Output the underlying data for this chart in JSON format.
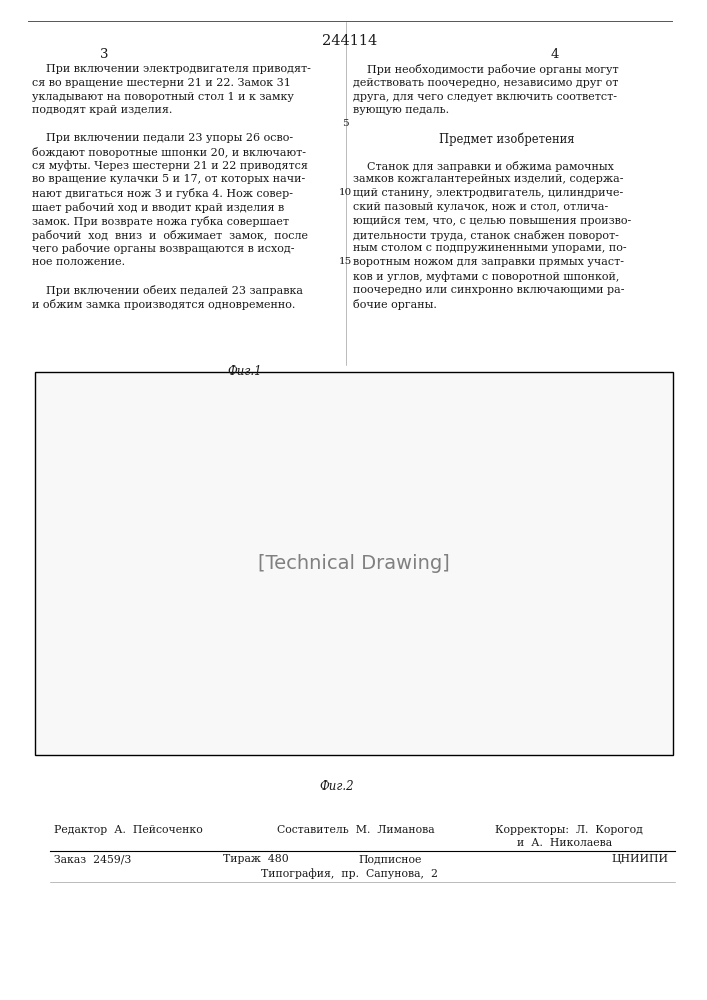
{
  "patent_number": "244114",
  "page_left": "3",
  "page_right": "4",
  "bg_color": "#f5f5f0",
  "text_color": "#1a1a1a",
  "left_col_lines": [
    "    При включении электродвигателя приводят-",
    "ся во вращение шестерни 21 и 22. Замок 31",
    "укладывают на поворотный стол 1 и к замку",
    "подводят край изделия.",
    "",
    "    При включении педали 23 упоры 26 осво-",
    "бождают поворотные шпонки 20, и включают-",
    "ся муфты. Через шестерни 21 и 22 приводятся",
    "во вращение кулачки 5 и 17, от которых начи-",
    "нают двигаться нож 3 и губка 4. Нож совер-",
    "шает рабочий ход и вводит край изделия в",
    "замок. При возврате ножа губка совершает",
    "рабочий  ход  вниз  и  обжимает  замок,  после",
    "чего рабочие органы возвращаются в исход-",
    "ное положение.",
    "",
    "    При включении обеих педалей 23 заправка",
    "и обжим замка производятся одновременно."
  ],
  "right_col_lines": [
    "    При необходимости рабочие органы могут",
    "действовать поочередно, независимо друг от",
    "друга, для чего следует включить соответст-",
    "вующую педаль.",
    "",
    "Предмет изобретения",
    "",
    "    Станок для заправки и обжима рамочных",
    "замков кожгалантерейных изделий, содержа-",
    "щий станину, электродвигатель, цилиндриче-",
    "ский пазовый кулачок, нож и стол, отлича-",
    "ющийся тем, что, с целью повышения произво-",
    "дительности труда, станок снабжен поворот-",
    "ным столом с подпружиненными упорами, по-",
    "воротным ножом для заправки прямых участ-",
    "ков и углов, муфтами с поворотной шпонкой,",
    "поочередно или синхронно включающими ра-",
    "бочие органы."
  ],
  "fig1_label": "Фиг.1",
  "fig2_label": "Фиг.2",
  "editor_line": "Редактор  А.  Пейсоченко",
  "composer_line": "Составитель  М.  Лиманова",
  "correctors_line1": "Корректоры:  Л.  Корогод",
  "correctors_line2": "и  А.  Николаева",
  "order_line": "Заказ  2459/3",
  "tirazh_line": "Тираж  480",
  "podpisnoe_line": "Подписное",
  "tsniip_line": "ЦНИИПИ",
  "tipografiya_line": "Типография,  пр.  Сапунова,  2",
  "line_y_5": "5",
  "line_y_10": "10",
  "line_y_15": "15"
}
